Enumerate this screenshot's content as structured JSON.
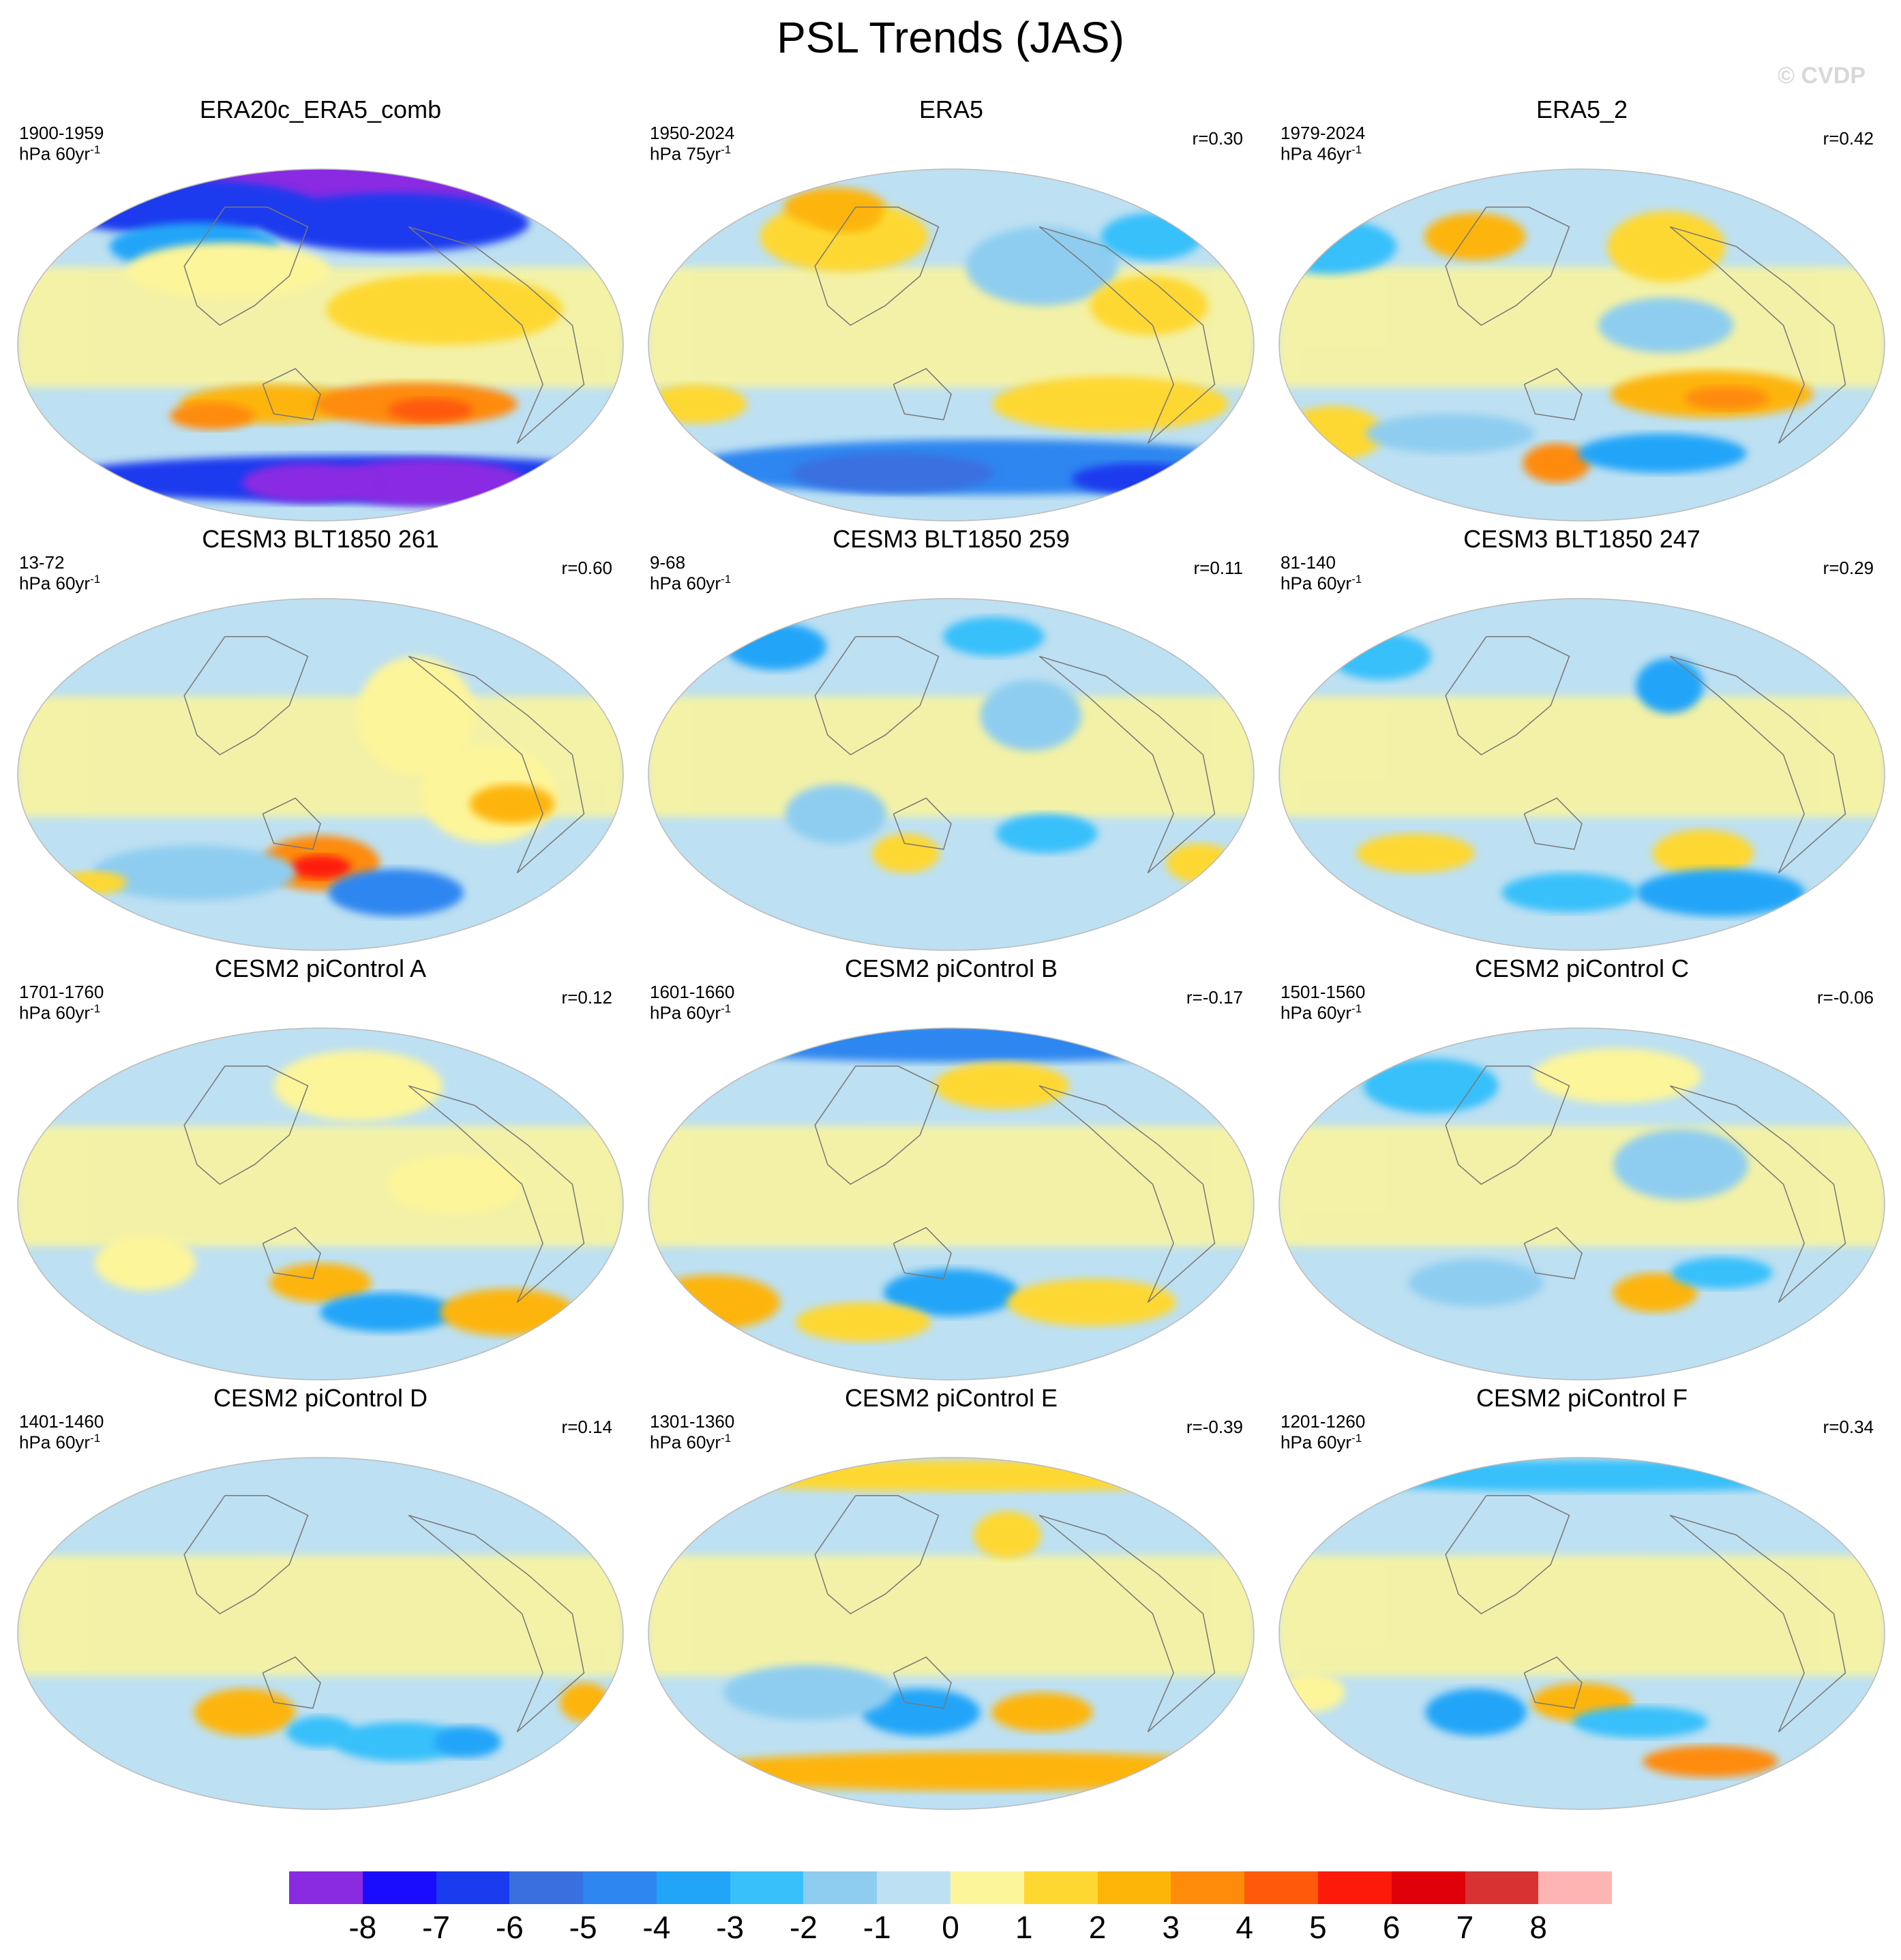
{
  "figure": {
    "title": "PSL Trends (JAS)",
    "watermark": "© CVDP"
  },
  "panels": [
    {
      "title": "ERA20c_ERA5_comb",
      "years": "1900-1959",
      "unit": "hPa 60yr",
      "unit_sup": "-1",
      "r": "",
      "blobs": [
        {
          "lon": -180,
          "lat": 82,
          "rx": 180,
          "ry": 15,
          "level": -8
        },
        {
          "lon": -150,
          "lat": 62,
          "rx": 80,
          "ry": 15,
          "level": -6
        },
        {
          "lon": 20,
          "lat": 70,
          "rx": 80,
          "ry": 14,
          "level": -6
        },
        {
          "lon": 60,
          "lat": 50,
          "rx": 50,
          "ry": 12,
          "level": -3
        },
        {
          "lon": 90,
          "lat": 38,
          "rx": 60,
          "ry": 14,
          "level": 1
        },
        {
          "lon": -135,
          "lat": 18,
          "rx": 70,
          "ry": 18,
          "level": 2
        },
        {
          "lon": 120,
          "lat": -30,
          "rx": 55,
          "ry": 10,
          "level": 3
        },
        {
          "lon": -150,
          "lat": -30,
          "rx": 60,
          "ry": 11,
          "level": 4
        },
        {
          "lon": -140,
          "lat": -33,
          "rx": 25,
          "ry": 6,
          "level": 5
        },
        {
          "lon": 80,
          "lat": -36,
          "rx": 25,
          "ry": 7,
          "level": 4
        },
        {
          "lon": -180,
          "lat": -68,
          "rx": 180,
          "ry": 12,
          "level": -6
        },
        {
          "lon": -110,
          "lat": -70,
          "rx": 60,
          "ry": 12,
          "level": -8
        },
        {
          "lon": 140,
          "lat": -70,
          "rx": 40,
          "ry": 10,
          "level": -8
        }
      ]
    },
    {
      "title": "ERA5",
      "years": "1950-2024",
      "unit": "hPa 75yr",
      "unit_sup": "-1",
      "r": "r=0.30",
      "blobs": [
        {
          "lon": 70,
          "lat": 55,
          "rx": 50,
          "ry": 18,
          "level": 2
        },
        {
          "lon": 60,
          "lat": 65,
          "rx": 20,
          "ry": 8,
          "level": 3
        },
        {
          "lon": -150,
          "lat": 40,
          "rx": 45,
          "ry": 20,
          "level": -1
        },
        {
          "lon": -60,
          "lat": 55,
          "rx": 30,
          "ry": 12,
          "level": -2
        },
        {
          "lon": -90,
          "lat": 20,
          "rx": 35,
          "ry": 15,
          "level": 2
        },
        {
          "lon": 40,
          "lat": 70,
          "rx": 30,
          "ry": 10,
          "level": 3
        },
        {
          "lon": -110,
          "lat": -30,
          "rx": 70,
          "ry": 14,
          "level": 2
        },
        {
          "lon": -10,
          "lat": -30,
          "rx": 30,
          "ry": 10,
          "level": 2
        },
        {
          "lon": -180,
          "lat": -62,
          "rx": 180,
          "ry": 14,
          "level": -4
        },
        {
          "lon": 100,
          "lat": -65,
          "rx": 60,
          "ry": 10,
          "level": -5
        },
        {
          "lon": -40,
          "lat": -68,
          "rx": 40,
          "ry": 8,
          "level": -6
        }
      ]
    },
    {
      "title": "ERA5_2",
      "years": "1979-2024",
      "unit": "hPa 46yr",
      "unit_sup": "-1",
      "r": "r=0.42",
      "blobs": [
        {
          "lon": 70,
          "lat": 55,
          "rx": 30,
          "ry": 12,
          "level": 3
        },
        {
          "lon": -150,
          "lat": 50,
          "rx": 35,
          "ry": 18,
          "level": 2
        },
        {
          "lon": -30,
          "lat": 50,
          "rx": 40,
          "ry": 14,
          "level": -2
        },
        {
          "lon": -160,
          "lat": 10,
          "rx": 40,
          "ry": 14,
          "level": -1
        },
        {
          "lon": -130,
          "lat": -25,
          "rx": 60,
          "ry": 12,
          "level": 3
        },
        {
          "lon": -120,
          "lat": -27,
          "rx": 25,
          "ry": 6,
          "level": 4
        },
        {
          "lon": 130,
          "lat": -60,
          "rx": 20,
          "ry": 10,
          "level": 4
        },
        {
          "lon": -150,
          "lat": -55,
          "rx": 50,
          "ry": 10,
          "level": -3
        },
        {
          "lon": -20,
          "lat": -45,
          "rx": 30,
          "ry": 14,
          "level": 2
        },
        {
          "lon": 60,
          "lat": -45,
          "rx": 50,
          "ry": 10,
          "level": -1
        }
      ]
    },
    {
      "title": "CESM3 BLT1850 261",
      "years": "13-72",
      "unit": "hPa 60yr",
      "unit_sup": "-1",
      "r": "r=0.60",
      "blobs": [
        {
          "lon": -150,
          "lat": 30,
          "rx": 35,
          "ry": 30,
          "level": 1
        },
        {
          "lon": -110,
          "lat": -10,
          "rx": 40,
          "ry": 25,
          "level": 1
        },
        {
          "lon": -95,
          "lat": -15,
          "rx": 25,
          "ry": 10,
          "level": 3
        },
        {
          "lon": 150,
          "lat": -45,
          "rx": 35,
          "ry": 14,
          "level": 4
        },
        {
          "lon": 150,
          "lat": -47,
          "rx": 18,
          "ry": 6,
          "level": 6
        },
        {
          "lon": -150,
          "lat": -60,
          "rx": 40,
          "ry": 12,
          "level": -4
        },
        {
          "lon": 60,
          "lat": -50,
          "rx": 60,
          "ry": 14,
          "level": -1
        },
        {
          "lon": -20,
          "lat": -55,
          "rx": 20,
          "ry": 6,
          "level": 2
        }
      ]
    },
    {
      "title": "CESM3 BLT1850 259",
      "years": "9-68",
      "unit": "hPa 60yr",
      "unit_sup": "-1",
      "r": "r=0.11",
      "blobs": [
        {
          "lon": -170,
          "lat": 70,
          "rx": 30,
          "ry": 10,
          "level": -2
        },
        {
          "lon": 0,
          "lat": 65,
          "rx": 30,
          "ry": 12,
          "level": -3
        },
        {
          "lon": -160,
          "lat": 30,
          "rx": 30,
          "ry": 18,
          "level": -1
        },
        {
          "lon": 80,
          "lat": -20,
          "rx": 30,
          "ry": 15,
          "level": -1
        },
        {
          "lon": -150,
          "lat": -30,
          "rx": 30,
          "ry": 10,
          "level": -2
        },
        {
          "lon": -40,
          "lat": -45,
          "rx": 20,
          "ry": 10,
          "level": 2
        },
        {
          "lon": 120,
          "lat": -40,
          "rx": 20,
          "ry": 10,
          "level": 2
        }
      ]
    },
    {
      "title": "CESM3 BLT1850 247",
      "years": "81-140",
      "unit": "hPa 60yr",
      "unit_sup": "-1",
      "r": "r=0.29",
      "blobs": [
        {
          "lon": -150,
          "lat": 45,
          "rx": 20,
          "ry": 14,
          "level": -3
        },
        {
          "lon": -10,
          "lat": 60,
          "rx": 30,
          "ry": 12,
          "level": -2
        },
        {
          "lon": -130,
          "lat": -40,
          "rx": 30,
          "ry": 12,
          "level": 2
        },
        {
          "lon": -100,
          "lat": -60,
          "rx": 50,
          "ry": 12,
          "level": -3
        },
        {
          "lon": 40,
          "lat": -40,
          "rx": 35,
          "ry": 10,
          "level": 2
        },
        {
          "lon": 140,
          "lat": -60,
          "rx": 40,
          "ry": 10,
          "level": -2
        }
      ]
    },
    {
      "title": "CESM2 piControl A",
      "years": "1701-1760",
      "unit": "hPa 60yr",
      "unit_sup": "-1",
      "r": "r=0.12",
      "blobs": [
        {
          "lon": -180,
          "lat": 60,
          "rx": 50,
          "ry": 18,
          "level": 1
        },
        {
          "lon": -130,
          "lat": 10,
          "rx": 40,
          "ry": 15,
          "level": 1
        },
        {
          "lon": 150,
          "lat": -40,
          "rx": 30,
          "ry": 10,
          "level": 3
        },
        {
          "lon": -160,
          "lat": -55,
          "rx": 40,
          "ry": 10,
          "level": -3
        },
        {
          "lon": -70,
          "lat": -55,
          "rx": 40,
          "ry": 12,
          "level": 3
        },
        {
          "lon": 40,
          "lat": -30,
          "rx": 30,
          "ry": 14,
          "level": 1
        }
      ]
    },
    {
      "title": "CESM2 piControl B",
      "years": "1601-1660",
      "unit": "hPa 60yr",
      "unit_sup": "-1",
      "r": "r=-0.17",
      "blobs": [
        {
          "lon": -180,
          "lat": 82,
          "rx": 180,
          "ry": 10,
          "level": -4
        },
        {
          "lon": -170,
          "lat": 60,
          "rx": 40,
          "ry": 12,
          "level": 2
        },
        {
          "lon": 150,
          "lat": -45,
          "rx": 40,
          "ry": 12,
          "level": -3
        },
        {
          "lon": -110,
          "lat": -50,
          "rx": 50,
          "ry": 12,
          "level": 2
        },
        {
          "lon": -20,
          "lat": -50,
          "rx": 40,
          "ry": 14,
          "level": 3
        },
        {
          "lon": 80,
          "lat": -60,
          "rx": 40,
          "ry": 10,
          "level": 2
        }
      ]
    },
    {
      "title": "CESM2 piControl C",
      "years": "1501-1560",
      "unit": "hPa 60yr",
      "unit_sup": "-1",
      "r": "r=-0.06",
      "blobs": [
        {
          "lon": -180,
          "lat": 65,
          "rx": 50,
          "ry": 14,
          "level": 1
        },
        {
          "lon": 30,
          "lat": 60,
          "rx": 40,
          "ry": 14,
          "level": -2
        },
        {
          "lon": -150,
          "lat": 20,
          "rx": 40,
          "ry": 18,
          "level": -1
        },
        {
          "lon": -160,
          "lat": -45,
          "rx": 25,
          "ry": 10,
          "level": 3
        },
        {
          "lon": -120,
          "lat": -35,
          "rx": 30,
          "ry": 8,
          "level": -2
        },
        {
          "lon": 80,
          "lat": -40,
          "rx": 40,
          "ry": 12,
          "level": -1
        }
      ]
    },
    {
      "title": "CESM2 piControl D",
      "years": "1401-1460",
      "unit": "hPa 60yr",
      "unit_sup": "-1",
      "r": "r=0.14",
      "blobs": [
        {
          "lon": 100,
          "lat": -40,
          "rx": 30,
          "ry": 12,
          "level": 3
        },
        {
          "lon": -150,
          "lat": -55,
          "rx": 40,
          "ry": 10,
          "level": -2
        },
        {
          "lon": -40,
          "lat": -35,
          "rx": 15,
          "ry": 10,
          "level": 3
        },
        {
          "lon": -100,
          "lat": -55,
          "rx": 20,
          "ry": 8,
          "level": -3
        },
        {
          "lon": 150,
          "lat": -50,
          "rx": 20,
          "ry": 8,
          "level": -2
        }
      ]
    },
    {
      "title": "CESM2 piControl E",
      "years": "1301-1360",
      "unit": "hPa 60yr",
      "unit_sup": "-1",
      "r": "r=-0.39",
      "blobs": [
        {
          "lon": -180,
          "lat": 80,
          "rx": 180,
          "ry": 8,
          "level": 2
        },
        {
          "lon": -170,
          "lat": 50,
          "rx": 20,
          "ry": 12,
          "level": 2
        },
        {
          "lon": 130,
          "lat": -40,
          "rx": 35,
          "ry": 12,
          "level": -3
        },
        {
          "lon": -150,
          "lat": -40,
          "rx": 30,
          "ry": 10,
          "level": 3
        },
        {
          "lon": -180,
          "lat": -70,
          "rx": 180,
          "ry": 10,
          "level": 3
        },
        {
          "lon": 60,
          "lat": -30,
          "rx": 50,
          "ry": 14,
          "level": -1
        }
      ]
    },
    {
      "title": "CESM2 piControl F",
      "years": "1201-1260",
      "unit": "hPa 60yr",
      "unit_sup": "-1",
      "r": "r=0.34",
      "blobs": [
        {
          "lon": -180,
          "lat": 80,
          "rx": 180,
          "ry": 8,
          "level": -2
        },
        {
          "lon": 150,
          "lat": -35,
          "rx": 30,
          "ry": 10,
          "level": 3
        },
        {
          "lon": -170,
          "lat": -45,
          "rx": 40,
          "ry": 8,
          "level": -2
        },
        {
          "lon": -100,
          "lat": -65,
          "rx": 40,
          "ry": 8,
          "level": 4
        },
        {
          "lon": 80,
          "lat": -40,
          "rx": 30,
          "ry": 12,
          "level": -3
        },
        {
          "lon": -20,
          "lat": -30,
          "rx": 20,
          "ry": 10,
          "level": 1
        }
      ]
    }
  ],
  "colorbar": {
    "colors": [
      "#8a2be2",
      "#1a0dff",
      "#1a3aee",
      "#3a6fe0",
      "#2e86f0",
      "#20a5f8",
      "#38c0fa",
      "#8ecdf0",
      "#bde0f2",
      "#fdf59a",
      "#fed831",
      "#fdb507",
      "#fe8b0a",
      "#fe5a0a",
      "#fe1a0a",
      "#e0000a",
      "#d83232",
      "#ffb4b4"
    ],
    "labels": [
      "-8",
      "-7",
      "-6",
      "-5",
      "-4",
      "-3",
      "-2",
      "-1",
      "0",
      "1",
      "2",
      "3",
      "4",
      "5",
      "6",
      "7",
      "8"
    ]
  }
}
